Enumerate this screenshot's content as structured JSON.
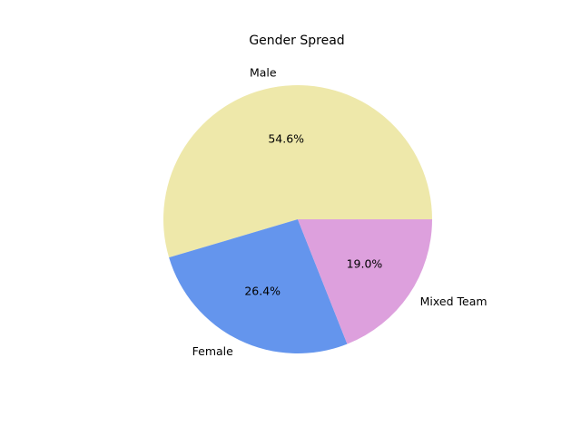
{
  "chart_data": {
    "type": "pie",
    "title": "Gender Spread",
    "categories": [
      "Male",
      "Female",
      "Mixed Team"
    ],
    "values": [
      54.6,
      26.4,
      19.0
    ],
    "value_labels": [
      "54.6%",
      "26.4%",
      "19.0%"
    ],
    "colors": [
      "#EEE8AA",
      "#6495ED",
      "#DDA0DD"
    ],
    "start_angle_deg": 0,
    "direction": "counterclockwise",
    "legend": "none"
  }
}
